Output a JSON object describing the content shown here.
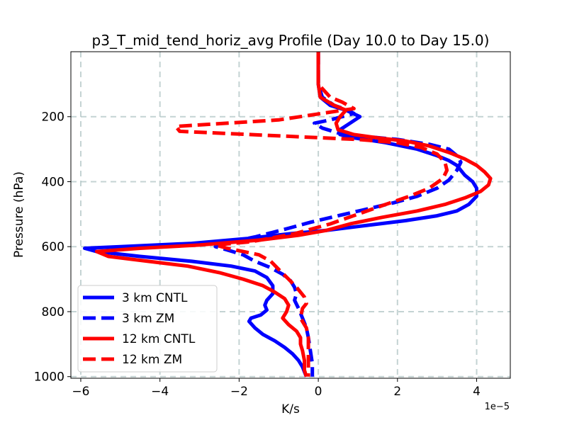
{
  "chart_data": {
    "type": "line",
    "title": "p3_T_mid_tend_horiz_avg Profile (Day 10.0 to Day 15.0)",
    "xlabel": "K/s",
    "ylabel": "Pressure (hPa)",
    "x_scale_label": "1e−5",
    "xlim": [
      -6.25,
      4.85
    ],
    "ylim": [
      1005,
      0
    ],
    "xticks": [
      -6,
      -4,
      -2,
      0,
      2,
      4
    ],
    "xtick_labels": [
      "−6",
      "−4",
      "−2",
      "0",
      "2",
      "4"
    ],
    "yticks": [
      200,
      400,
      600,
      800,
      1000
    ],
    "ytick_labels": [
      "200",
      "400",
      "600",
      "800",
      "1000"
    ],
    "grid": true,
    "legend_position": "lower-left",
    "series": [
      {
        "name": "3 km CNTL",
        "color": "#0000ff",
        "style": "solid",
        "x": [
          0,
          0,
          0,
          0.05,
          0.3,
          0.7,
          1.05,
          0.8,
          0.55,
          0.55,
          0.9,
          1.7,
          2.5,
          3.0,
          3.3,
          3.5,
          3.6,
          3.7,
          3.9,
          4.0,
          4.0,
          3.8,
          3.5,
          3.0,
          2.2,
          1.2,
          0.2,
          -0.7,
          -1.8,
          -3.2,
          -5.0,
          -5.9,
          -5.6,
          -4.5,
          -3.2,
          -2.2,
          -1.6,
          -1.3,
          -1.15,
          -1.15,
          -1.3,
          -1.35,
          -1.3,
          -1.45,
          -1.7,
          -1.75,
          -1.6,
          -1.4,
          -1.1,
          -0.85,
          -0.65,
          -0.5,
          -0.4,
          -0.35,
          -0.3
        ],
        "y": [
          0,
          50,
          100,
          140,
          165,
          180,
          200,
          220,
          240,
          255,
          265,
          280,
          300,
          320,
          335,
          350,
          365,
          380,
          400,
          420,
          445,
          470,
          490,
          505,
          520,
          535,
          550,
          560,
          575,
          590,
          600,
          605,
          615,
          630,
          645,
          660,
          675,
          695,
          720,
          745,
          765,
          780,
          795,
          810,
          820,
          830,
          850,
          870,
          890,
          910,
          930,
          950,
          970,
          985,
          1000
        ]
      },
      {
        "name": "3 km ZM",
        "color": "#0000ff",
        "style": "dashed",
        "x": [
          0,
          0,
          0,
          0.1,
          0.4,
          0.75,
          0.9,
          0.6,
          0.3,
          -0.1,
          0.1,
          0.5,
          1.1,
          2.0,
          2.8,
          3.3,
          3.5,
          3.6,
          3.5,
          3.3,
          3.0,
          2.5,
          1.9,
          1.2,
          0.5,
          -0.2,
          -0.8,
          -1.6,
          -2.4,
          -2.6,
          -2.3,
          -1.9,
          -1.6,
          -1.2,
          -0.9,
          -0.7,
          -0.6,
          -0.55,
          -0.6,
          -0.5,
          -0.4,
          -0.3,
          -0.25,
          -0.2,
          -0.15,
          -0.15
        ],
        "y": [
          0,
          50,
          100,
          140,
          165,
          180,
          190,
          200,
          210,
          220,
          235,
          250,
          260,
          270,
          285,
          300,
          320,
          340,
          365,
          395,
          420,
          445,
          465,
          485,
          505,
          525,
          545,
          570,
          590,
          600,
          610,
          625,
          645,
          665,
          685,
          705,
          725,
          745,
          765,
          790,
          820,
          850,
          880,
          920,
          960,
          1000
        ]
      },
      {
        "name": "12 km CNTL",
        "color": "#ff0000",
        "style": "solid",
        "x": [
          0,
          0,
          0,
          0.05,
          0.4,
          0.7,
          0.55,
          0.45,
          0.5,
          0.9,
          1.5,
          2.2,
          2.8,
          3.3,
          3.7,
          4.0,
          4.2,
          4.35,
          4.3,
          4.1,
          3.7,
          3.2,
          2.5,
          1.6,
          0.8,
          0.2,
          -0.5,
          -1.5,
          -3.0,
          -4.5,
          -5.6,
          -5.3,
          -4.3,
          -3.3,
          -2.5,
          -1.9,
          -1.4,
          -1.1,
          -0.85,
          -0.75,
          -0.8,
          -0.9,
          -0.75,
          -0.55,
          -0.45,
          -0.45,
          -0.4,
          -0.35,
          -0.35,
          -0.3
        ],
        "y": [
          0,
          50,
          100,
          140,
          165,
          180,
          200,
          220,
          240,
          255,
          265,
          275,
          290,
          310,
          330,
          350,
          370,
          390,
          410,
          430,
          450,
          470,
          490,
          510,
          530,
          550,
          565,
          580,
          595,
          605,
          615,
          630,
          645,
          660,
          680,
          700,
          720,
          740,
          760,
          780,
          800,
          820,
          840,
          860,
          880,
          900,
          920,
          950,
          980,
          1000
        ]
      },
      {
        "name": "12 km ZM",
        "color": "#ff0000",
        "style": "dashed",
        "x": [
          0,
          0,
          0,
          0.3,
          0.6,
          0.9,
          -1.0,
          -3.6,
          -3.5,
          -0.8,
          1.0,
          2.0,
          2.6,
          3.0,
          3.2,
          3.25,
          3.15,
          2.8,
          2.3,
          1.7,
          1.0,
          0.3,
          -0.6,
          -1.7,
          -2.6,
          -2.3,
          -1.5,
          -1.2,
          -1.0,
          -0.75,
          -0.55,
          -0.35,
          -0.3,
          -0.4,
          -0.45,
          -0.3,
          -0.25,
          -0.25,
          -0.25,
          -0.25
        ],
        "y": [
          0,
          50,
          100,
          140,
          155,
          175,
          210,
          230,
          245,
          260,
          270,
          280,
          295,
          315,
          340,
          365,
          390,
          420,
          445,
          470,
          500,
          530,
          560,
          585,
          595,
          605,
          625,
          645,
          670,
          700,
          725,
          755,
          775,
          790,
          820,
          850,
          880,
          920,
          960,
          1000
        ]
      }
    ]
  }
}
